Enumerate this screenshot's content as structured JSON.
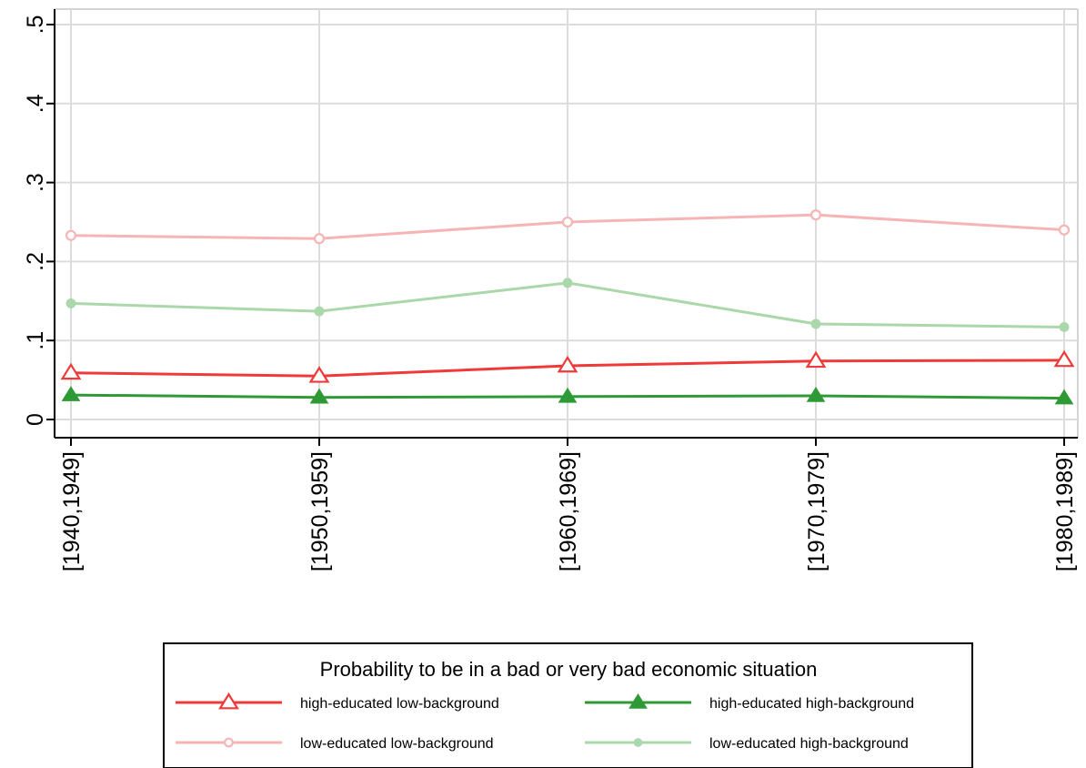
{
  "chart_data": {
    "type": "line",
    "categories": [
      "[1940,1949]",
      "[1950,1959]",
      "[1960,1969]",
      "[1970,1979]",
      "[1980,1989]"
    ],
    "y_ticks": [
      0,
      0.1,
      0.2,
      0.3,
      0.4,
      0.5
    ],
    "y_tick_labels": [
      "0",
      ".1",
      ".2",
      ".3",
      ".4",
      ".5"
    ],
    "ylim": [
      0,
      0.5
    ],
    "grid": true,
    "legend_title": "Probability to be in a bad or very bad economic situation",
    "legend_position": "bottom",
    "series": [
      {
        "name": "high-educated low-background",
        "color": "#f03a3a",
        "marker": "triangle-hollow",
        "values": [
          0.059,
          0.055,
          0.068,
          0.074,
          0.075
        ]
      },
      {
        "name": "high-educated high-background",
        "color": "#2e9a35",
        "marker": "triangle-filled",
        "values": [
          0.031,
          0.028,
          0.029,
          0.03,
          0.027
        ]
      },
      {
        "name": "low-educated low-background",
        "color": "#f7b4b4",
        "marker": "circle-hollow",
        "values": [
          0.233,
          0.229,
          0.25,
          0.259,
          0.24
        ]
      },
      {
        "name": "low-educated high-background",
        "color": "#abd8aa",
        "marker": "circle-filled",
        "values": [
          0.147,
          0.137,
          0.173,
          0.121,
          0.117
        ]
      }
    ]
  }
}
